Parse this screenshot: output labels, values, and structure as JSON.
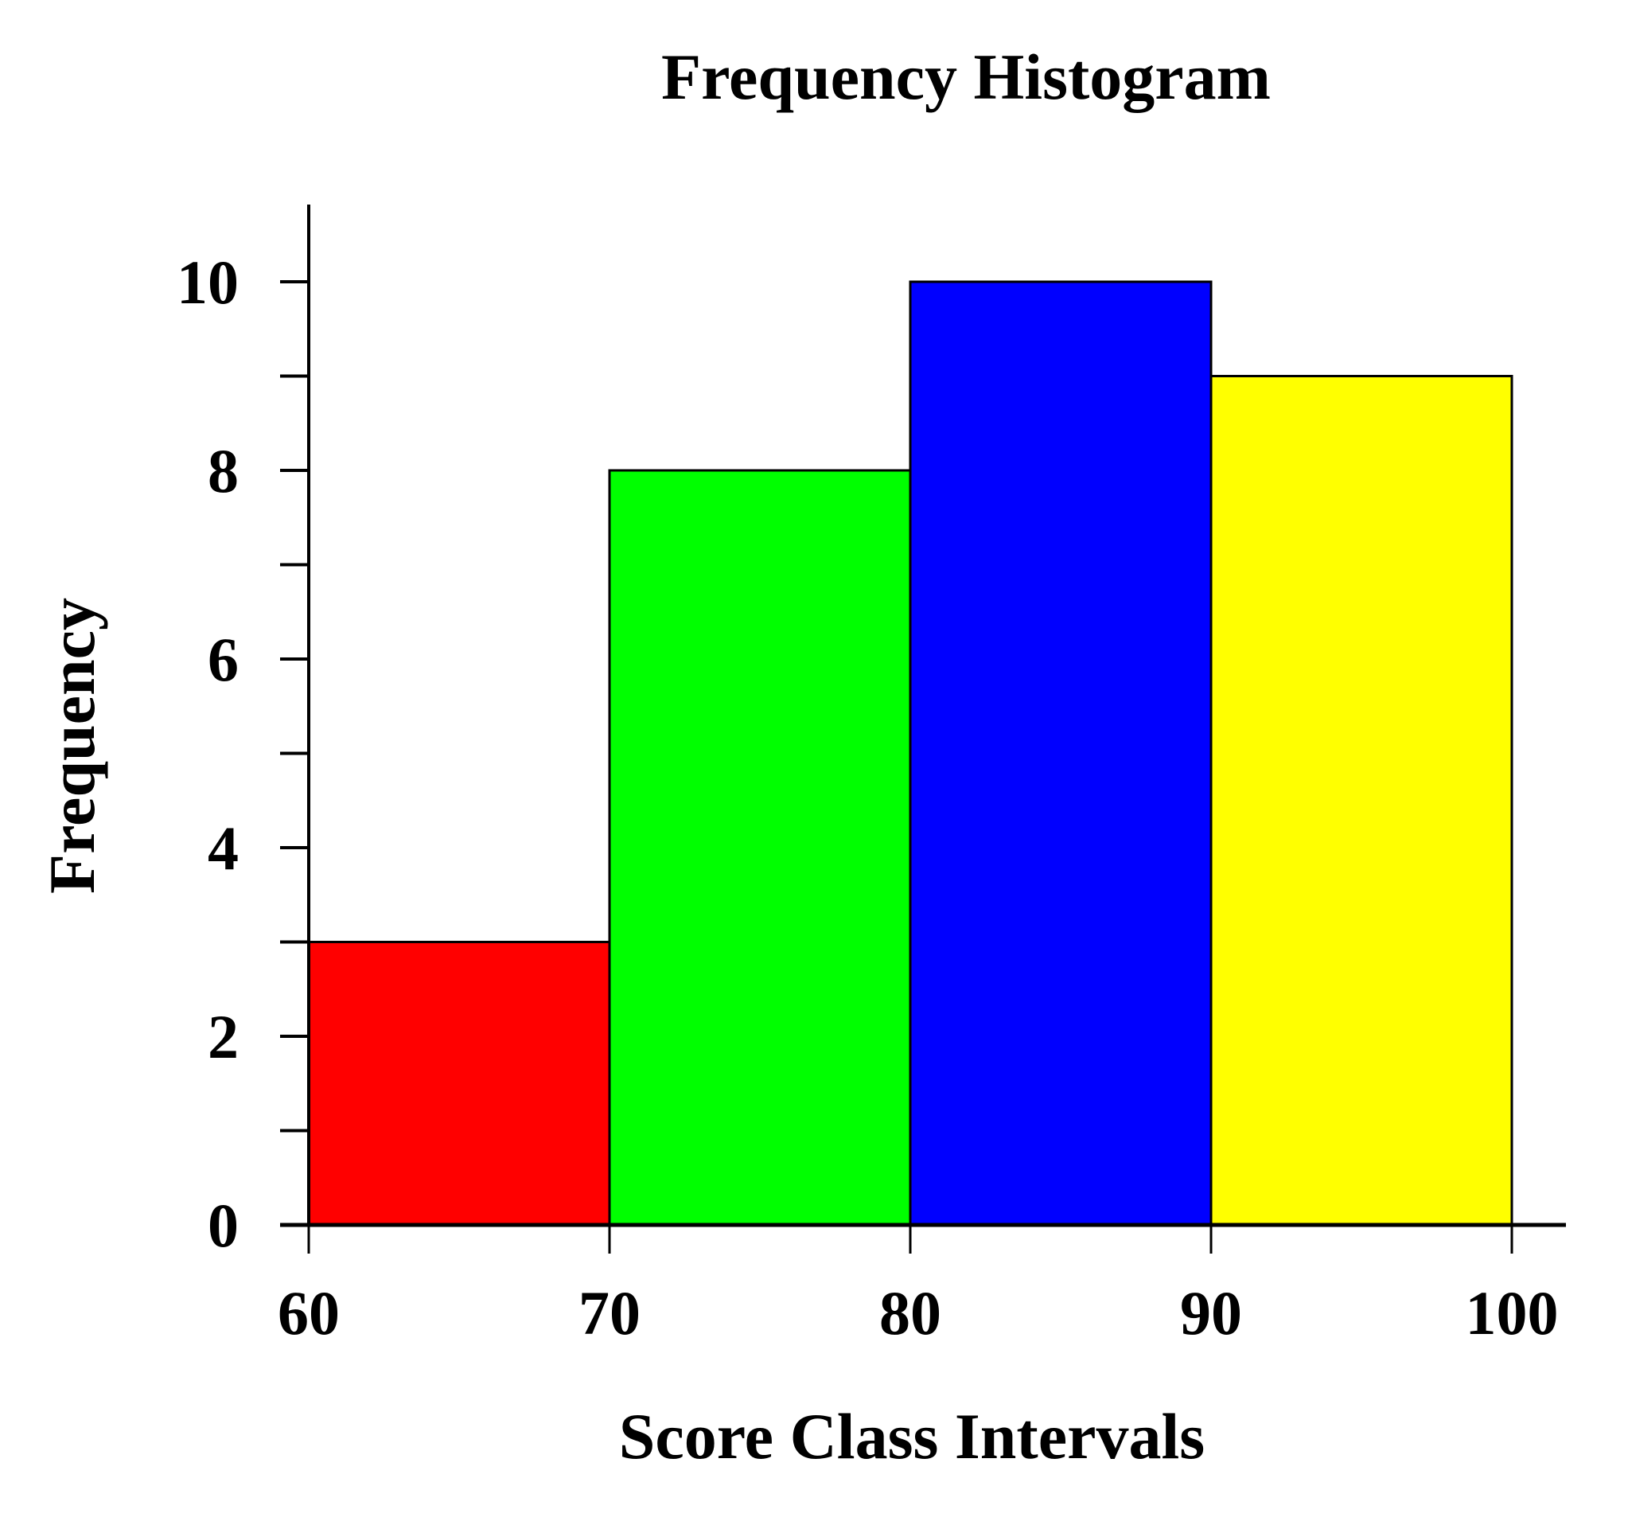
{
  "chart_data": {
    "type": "bar",
    "subtype": "histogram",
    "title": "Frequency Histogram",
    "xlabel": "Score Class Intervals",
    "ylabel": "Frequency",
    "bins": [
      [
        60,
        70
      ],
      [
        70,
        80
      ],
      [
        80,
        90
      ],
      [
        90,
        100
      ]
    ],
    "categories": [
      "60-70",
      "70-80",
      "80-90",
      "90-100"
    ],
    "values": [
      3,
      8,
      10,
      9
    ],
    "colors": [
      "#ff0000",
      "#00ff00",
      "#0000ff",
      "#ffff00"
    ],
    "x_ticks": [
      60,
      70,
      80,
      90,
      100
    ],
    "x_tick_labels": [
      "60",
      "70",
      "80",
      "90",
      "100"
    ],
    "y_ticks_major": [
      0,
      2,
      4,
      6,
      8,
      10
    ],
    "y_tick_labels": [
      "0",
      "2",
      "4",
      "6",
      "8",
      "10"
    ],
    "y_ticks_minor": [
      1,
      3,
      5,
      7,
      9
    ],
    "xlim": [
      60,
      100
    ],
    "ylim": [
      0,
      10
    ],
    "grid": false,
    "legend": null
  }
}
